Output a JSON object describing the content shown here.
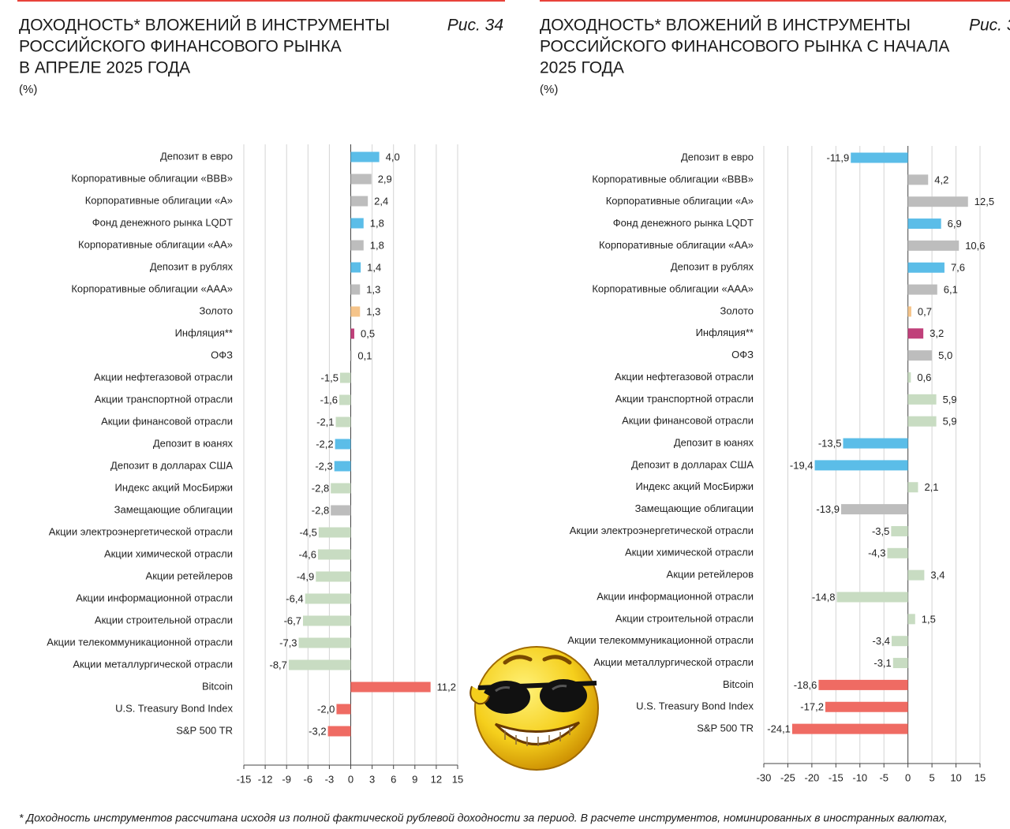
{
  "chart_data": [
    {
      "type": "bar",
      "orientation": "horizontal",
      "title": [
        "ДОХОДНОСТЬ* ВЛОЖЕНИЙ В ИНСТРУМЕНТЫ",
        "РОССИЙСКОГО ФИНАНСОВОГО РЫНКА",
        "В АПРЕЛЕ 2025 ГОДА"
      ],
      "subtitle": "(%)",
      "figure_label": "Рис. 34",
      "categories": [
        "Депозит в евро",
        "Корпоративные облигации «BBB»",
        "Корпоративные облигации «А»",
        "Фонд денежного рынка LQDT",
        "Корпоративные облигации «АА»",
        "Депозит в рублях",
        "Корпоративные облигации «ААА»",
        "Золото",
        "Инфляция**",
        "ОФЗ",
        "Акции нефтегазовой отрасли",
        "Акции транспортной отрасли",
        "Акции финансовой отрасли",
        "Депозит в юанях",
        "Депозит в долларах США",
        "Индекс акций МосБиржи",
        "Замещающие облигации",
        "Акции электроэнергетической отрасли",
        "Акции химической отрасли",
        "Акции ретейлеров",
        "Акции информационной отрасли",
        "Акции строительной отрасли",
        "Акции телекоммуникационной отрасли",
        "Акции металлургической отрасли",
        "Bitcoin",
        "U.S. Treasury Bond Index",
        "S&P 500 TR"
      ],
      "values": [
        4.0,
        2.9,
        2.4,
        1.8,
        1.8,
        1.4,
        1.3,
        1.3,
        0.5,
        0.1,
        -1.5,
        -1.6,
        -2.1,
        -2.2,
        -2.3,
        -2.8,
        -2.8,
        -4.5,
        -4.6,
        -4.9,
        -6.4,
        -6.7,
        -7.3,
        -8.7,
        11.2,
        -2.0,
        -3.2
      ],
      "value_labels": [
        "4,0",
        "2,9",
        "2,4",
        "1,8",
        "1,8",
        "1,4",
        "1,3",
        "1,3",
        "0,5",
        "0,1",
        "-1,5",
        "-1,6",
        "-2,1",
        "-2,2",
        "-2,3",
        "-2,8",
        "-2,8",
        "-4,5",
        "-4,6",
        "-4,9",
        "-6,4",
        "-6,7",
        "-7,3",
        "-8,7",
        "11,2",
        "-2,0",
        "-3,2"
      ],
      "colors": [
        "#5bbde8",
        "#bdbdbd",
        "#bdbdbd",
        "#5bbde8",
        "#bdbdbd",
        "#5bbde8",
        "#bdbdbd",
        "#f5c48a",
        "#c0407a",
        "#bdbdbd",
        "#c8dcc2",
        "#c8dcc2",
        "#c8dcc2",
        "#5bbde8",
        "#5bbde8",
        "#c8dcc2",
        "#bdbdbd",
        "#c8dcc2",
        "#c8dcc2",
        "#c8dcc2",
        "#c8dcc2",
        "#c8dcc2",
        "#c8dcc2",
        "#c8dcc2",
        "#ef6b63",
        "#ef6b63",
        "#ef6b63"
      ],
      "xlim": [
        -15,
        15
      ],
      "xticks": [
        -15,
        -12,
        -9,
        -6,
        -3,
        0,
        3,
        6,
        9,
        12,
        15
      ],
      "grid": true
    },
    {
      "type": "bar",
      "orientation": "horizontal",
      "title": [
        "ДОХОДНОСТЬ* ВЛОЖЕНИЙ В ИНСТРУМЕНТЫ",
        "РОССИЙСКОГО ФИНАНСОВОГО РЫНКА С НАЧАЛА",
        "2025 ГОДА"
      ],
      "subtitle": "(%)",
      "figure_label": "Рис. 3",
      "categories": [
        "Депозит в евро",
        "Корпоративные облигации «BBB»",
        "Корпоративные облигации «А»",
        "Фонд денежного рынка LQDT",
        "Корпоративные облигации «АА»",
        "Депозит в рублях",
        "Корпоративные облигации «ААА»",
        "Золото",
        "Инфляция**",
        "ОФЗ",
        "Акции нефтегазовой отрасли",
        "Акции транспортной отрасли",
        "Акции финансовой отрасли",
        "Депозит в юанях",
        "Депозит в долларах США",
        "Индекс акций МосБиржи",
        "Замещающие облигации",
        "Акции электроэнергетической отрасли",
        "Акции химической отрасли",
        "Акции ретейлеров",
        "Акции информационной отрасли",
        "Акции строительной отрасли",
        "Акции телекоммуникационной отрасли",
        "Акции металлургической отрасли",
        "Bitcoin",
        "U.S. Treasury Bond Index",
        "S&P 500 TR"
      ],
      "values": [
        -11.9,
        4.2,
        12.5,
        6.9,
        10.6,
        7.6,
        6.1,
        0.7,
        3.2,
        5.0,
        0.6,
        5.9,
        5.9,
        -13.5,
        -19.4,
        2.1,
        -13.9,
        -3.5,
        -4.3,
        3.4,
        -14.8,
        1.5,
        -3.4,
        -3.1,
        -18.6,
        -17.2,
        -24.1
      ],
      "value_labels": [
        "-11,9",
        "4,2",
        "12,5",
        "6,9",
        "10,6",
        "7,6",
        "6,1",
        "0,7",
        "3,2",
        "5,0",
        "0,6",
        "5,9",
        "5,9",
        "-13,5",
        "-19,4",
        "2,1",
        "-13,9",
        "-3,5",
        "-4,3",
        "3,4",
        "-14,8",
        "1,5",
        "-3,4",
        "-3,1",
        "-18,6",
        "-17,2",
        "-24,1"
      ],
      "colors": [
        "#5bbde8",
        "#bdbdbd",
        "#bdbdbd",
        "#5bbde8",
        "#bdbdbd",
        "#5bbde8",
        "#bdbdbd",
        "#f5c48a",
        "#c0407a",
        "#bdbdbd",
        "#c8dcc2",
        "#c8dcc2",
        "#c8dcc2",
        "#5bbde8",
        "#5bbde8",
        "#c8dcc2",
        "#bdbdbd",
        "#c8dcc2",
        "#c8dcc2",
        "#c8dcc2",
        "#c8dcc2",
        "#c8dcc2",
        "#c8dcc2",
        "#c8dcc2",
        "#ef6b63",
        "#ef6b63",
        "#ef6b63"
      ],
      "xlim": [
        -30,
        15
      ],
      "xticks": [
        -30,
        -25,
        -20,
        -15,
        -10,
        -5,
        0,
        5,
        10,
        15
      ],
      "grid": true
    }
  ],
  "footnote": "* Доходность инструментов рассчитана исходя из полной фактической рублевой доходности за период. В расчете инструментов, номинированных в иностранных валютах,"
}
